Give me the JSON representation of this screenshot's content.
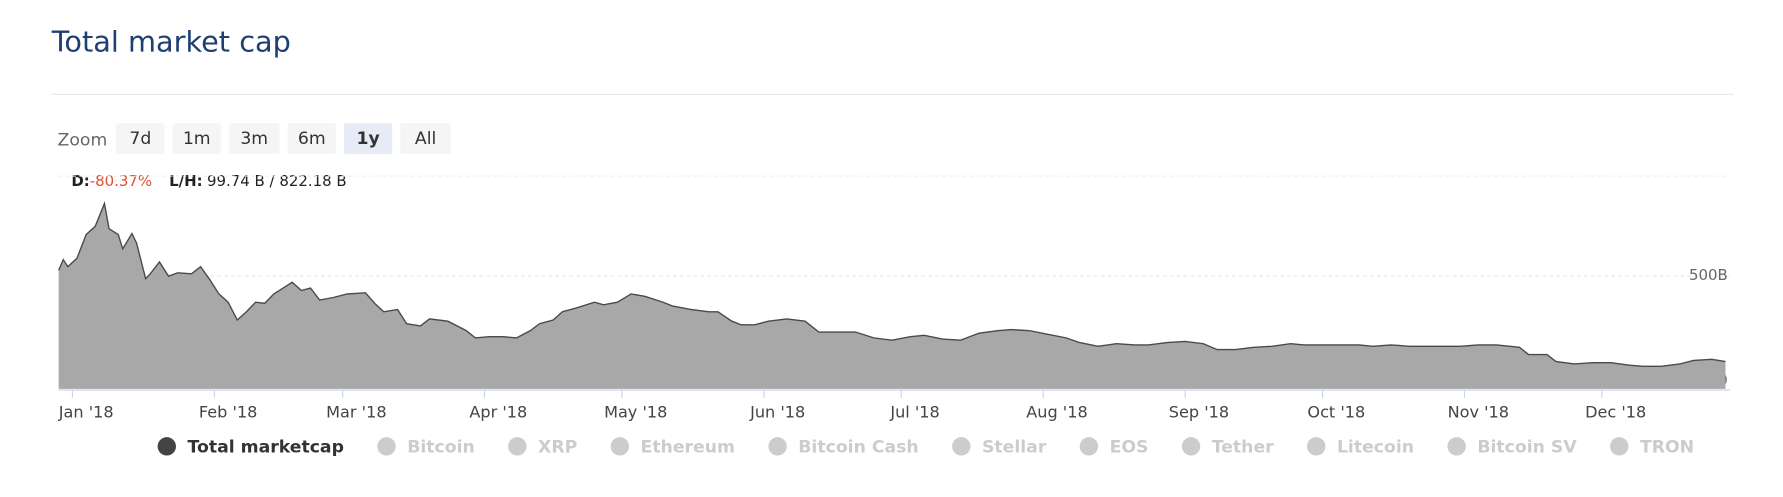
{
  "chart_data": {
    "type": "area",
    "title": "Total market cap",
    "zoom": {
      "label": "Zoom",
      "buttons": [
        "7d",
        "1m",
        "3m",
        "6m",
        "1y",
        "All"
      ],
      "selected": 4
    },
    "stats": {
      "d_label": "D:",
      "d_value": "-80.37%",
      "lh_label": "L/H:",
      "lh_value": "99.74 B / 822.18 B"
    },
    "x": [
      -3,
      -2,
      -1,
      1,
      3,
      5,
      7,
      8,
      10,
      11,
      13,
      14,
      16,
      17,
      19,
      21,
      23,
      26,
      28,
      30,
      32,
      34,
      36,
      38,
      40,
      42,
      44,
      46,
      48,
      50,
      52,
      54,
      57,
      60,
      64,
      66,
      68,
      71,
      73,
      76,
      78,
      82,
      86,
      88,
      91,
      94,
      97,
      100,
      102,
      105,
      107,
      110,
      114,
      116,
      119,
      122,
      125,
      129,
      131,
      135,
      139,
      141,
      144,
      146,
      149,
      152,
      156,
      160,
      163,
      168,
      171,
      175,
      179,
      183,
      186,
      190,
      194,
      198,
      202,
      205,
      209,
      213,
      217,
      220,
      224,
      228,
      232,
      235,
      239,
      243,
      247,
      250,
      254,
      258,
      262,
      266,
      269,
      273,
      277,
      281,
      284,
      288,
      292,
      296,
      300,
      303,
      307,
      311,
      316,
      318,
      322,
      324,
      328,
      332,
      336,
      340,
      343,
      347,
      351,
      354,
      358,
      361
    ],
    "series": [
      {
        "name": "Total marketcap",
        "color": "#a8a8a8",
        "line_color": "#4a4a4a",
        "values": [
          526,
          573,
          542,
          579,
          684,
          721,
          822,
          710,
          684,
          621,
          689,
          647,
          489,
          510,
          563,
          500,
          515,
          510,
          542,
          484,
          421,
          384,
          305,
          342,
          384,
          379,
          421,
          447,
          473,
          436,
          447,
          394,
          405,
          421,
          426,
          379,
          342,
          352,
          289,
          279,
          310,
          300,
          258,
          226,
          231,
          231,
          226,
          258,
          289,
          305,
          342,
          358,
          384,
          373,
          384,
          421,
          410,
          384,
          368,
          352,
          342,
          342,
          300,
          284,
          284,
          300,
          310,
          300,
          252,
          252,
          252,
          226,
          216,
          231,
          237,
          221,
          216,
          247,
          258,
          263,
          258,
          242,
          226,
          205,
          189,
          200,
          195,
          195,
          205,
          210,
          200,
          174,
          174,
          184,
          189,
          200,
          195,
          195,
          195,
          195,
          189,
          195,
          189,
          189,
          189,
          189,
          195,
          195,
          184,
          152,
          152,
          121,
          110,
          116,
          116,
          105,
          100,
          100,
          110,
          126,
          131,
          121
        ]
      }
    ],
    "hidden_series": [
      "Bitcoin",
      "XRP",
      "Ethereum",
      "Bitcoin Cash",
      "Stellar",
      "EOS",
      "Tether",
      "Litecoin",
      "Bitcoin SV",
      "TRON"
    ],
    "xlim": [
      -3,
      362
    ],
    "xticks": [
      {
        "value": 0,
        "label": "Jan '18"
      },
      {
        "value": 31,
        "label": "Feb '18"
      },
      {
        "value": 59,
        "label": "Mar '18"
      },
      {
        "value": 90,
        "label": "Apr '18"
      },
      {
        "value": 120,
        "label": "May '18"
      },
      {
        "value": 151,
        "label": "Jun '18"
      },
      {
        "value": 181,
        "label": "Jul '18"
      },
      {
        "value": 212,
        "label": "Aug '18"
      },
      {
        "value": 243,
        "label": "Sep '18"
      },
      {
        "value": 273,
        "label": "Oct '18"
      },
      {
        "value": 304,
        "label": "Nov '18"
      },
      {
        "value": 334,
        "label": "Dec '18"
      }
    ],
    "ylim": [
      0,
      1000
    ],
    "yticks": [
      0,
      {
        "value": 500,
        "label": "500B"
      }
    ],
    "grid": true
  }
}
